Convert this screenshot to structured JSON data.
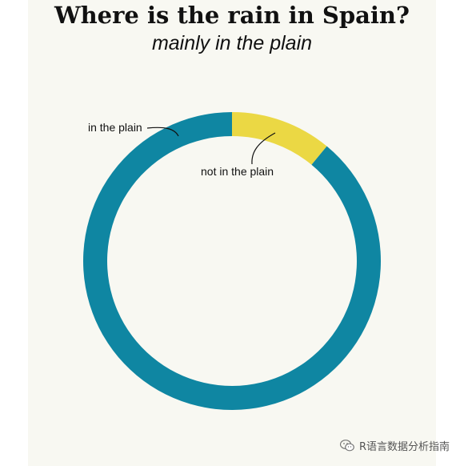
{
  "chart_data": {
    "type": "pie",
    "style": "donut",
    "title": "Where is the rain in Spain?",
    "subtitle": "mainly in the plain",
    "slices": [
      {
        "label": "not in the plain",
        "value": 0.11,
        "color": "#ebd844"
      },
      {
        "label": "in the plain",
        "value": 0.89,
        "color": "#0f86a2"
      }
    ],
    "start_angle_deg": 0,
    "direction": "clockwise",
    "legend": "none"
  },
  "watermark": {
    "text": "R语言数据分析指南",
    "icon": "wechat-icon"
  },
  "colors": {
    "panel_background": "#f8f8f2"
  }
}
